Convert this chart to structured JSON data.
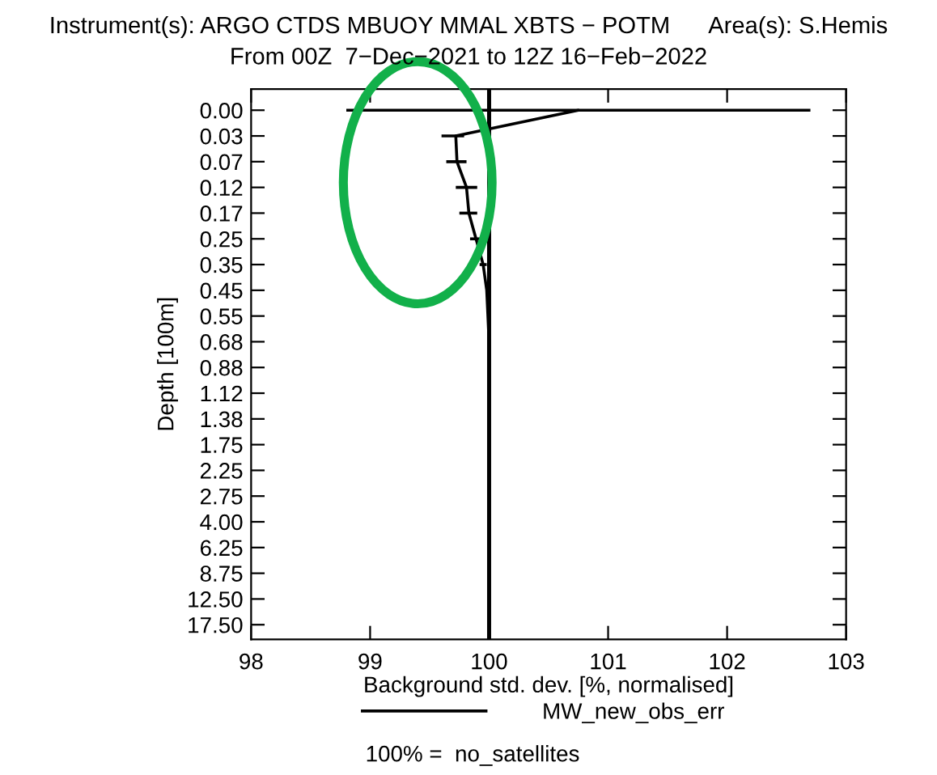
{
  "chart_data": {
    "type": "line",
    "title": "Instrument(s): ARGO CTDS MBUOY MMAL XBTS − POTM      Area(s): S.Hemis",
    "subtitle": "From 00Z  7−Dec−2021 to 12Z 16−Feb−2022",
    "xlabel": "Background std. dev. [%, normalised]",
    "ylabel": "Depth [100m]",
    "orientation": "horizontal",
    "categories": [
      "0.00",
      "0.03",
      "0.07",
      "0.12",
      "0.17",
      "0.25",
      "0.35",
      "0.45",
      "0.55",
      "0.68",
      "0.88",
      "1.12",
      "1.38",
      "1.75",
      "2.25",
      "2.75",
      "4.00",
      "6.25",
      "8.75",
      "12.50",
      "17.50"
    ],
    "series": [
      {
        "name": "MW_new_obs_err",
        "color": "#000000",
        "values": [
          100.75,
          99.72,
          99.73,
          99.81,
          99.83,
          99.89,
          99.95,
          99.98,
          99.99,
          100.0,
          100.0,
          100.0,
          100.0,
          100.0,
          100.0,
          100.0,
          100.0,
          100.0,
          100.0,
          100.0,
          100.0
        ],
        "errors": [
          [
            98.8,
            102.7
          ],
          [
            99.6,
            99.79
          ],
          [
            99.64,
            99.81
          ],
          [
            99.72,
            99.9
          ],
          [
            99.75,
            99.9
          ],
          [
            99.84,
            99.94
          ],
          [
            99.92,
            99.98
          ],
          null,
          null,
          null,
          null,
          null,
          null,
          null,
          null,
          null,
          null,
          null,
          null,
          null,
          null
        ]
      }
    ],
    "xlim": [
      98,
      103
    ],
    "xticks": [
      98,
      99,
      100,
      101,
      102,
      103
    ],
    "ref_lines": [
      {
        "axis": "x",
        "value": 100,
        "color": "#000000"
      }
    ],
    "annotations": [
      "100% =  no_satellites"
    ],
    "legend": "bottom",
    "grid": false,
    "marker": "none",
    "line_style": "solid"
  }
}
